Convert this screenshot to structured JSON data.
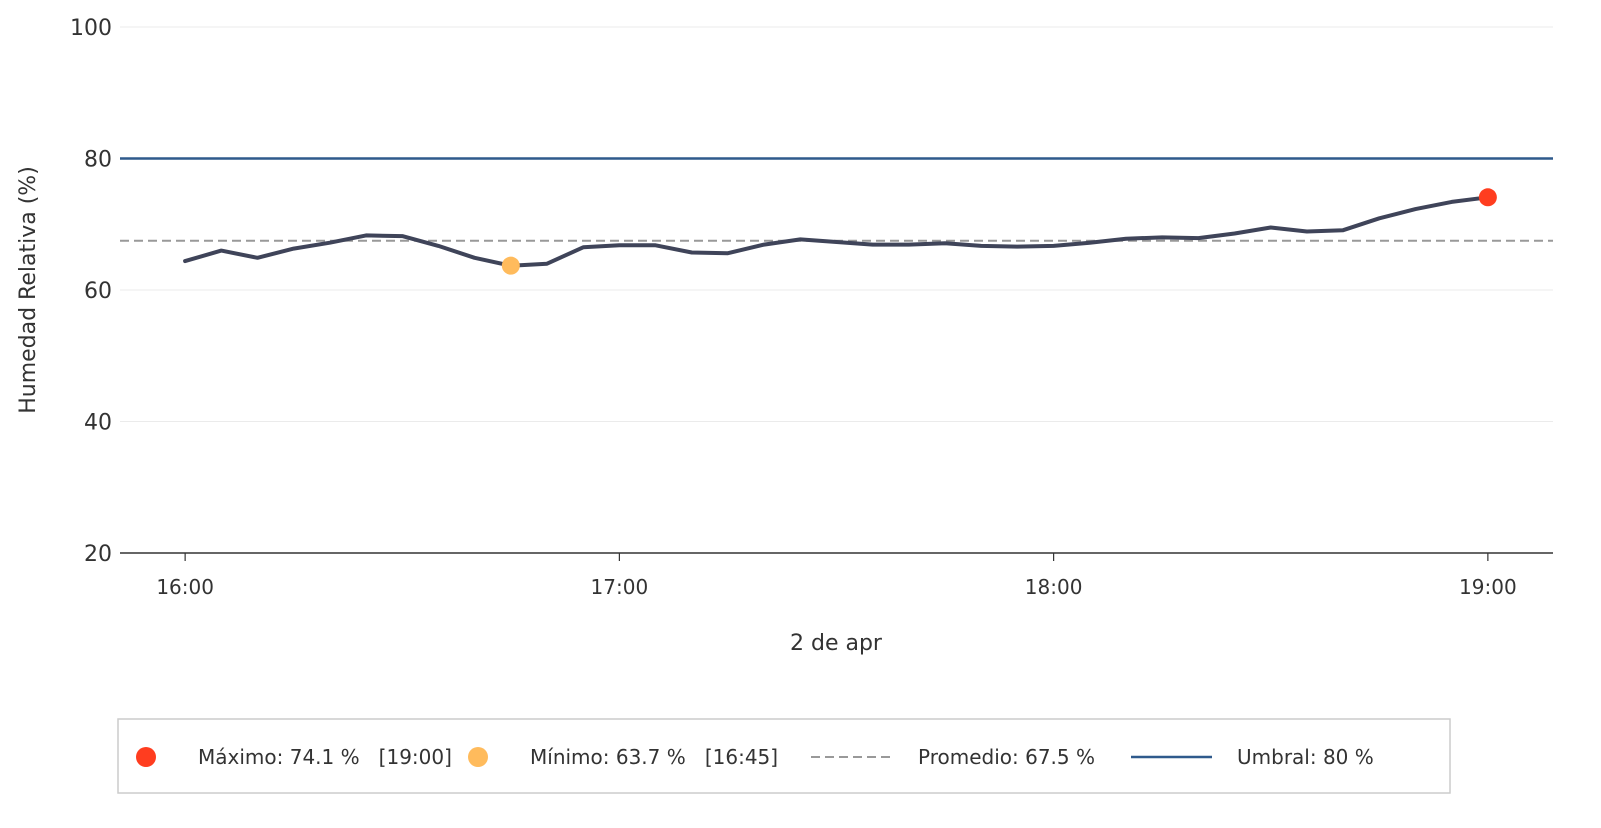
{
  "chart_data": {
    "type": "line",
    "ylabel": "Humedad Relativa (%)",
    "xlabel": "2 de apr",
    "ylim": [
      20,
      100
    ],
    "yticks": [
      20,
      40,
      60,
      80,
      100
    ],
    "xlim": [
      "15:51",
      "19:09"
    ],
    "xticks": [
      "16:00",
      "17:00",
      "18:00",
      "19:00"
    ],
    "grid": "horizontal",
    "series": [
      {
        "color": "#3f4459",
        "x": [
          "16:00",
          "16:05",
          "16:10",
          "16:15",
          "16:20",
          "16:25",
          "16:30",
          "16:35",
          "16:40",
          "16:45",
          "16:50",
          "16:55",
          "17:00",
          "17:05",
          "17:10",
          "17:15",
          "17:20",
          "17:25",
          "17:30",
          "17:35",
          "17:40",
          "17:45",
          "17:50",
          "17:55",
          "18:00",
          "18:05",
          "18:10",
          "18:15",
          "18:20",
          "18:25",
          "18:30",
          "18:35",
          "18:40",
          "18:45",
          "18:50",
          "18:55",
          "19:00"
        ],
        "values": [
          64.4,
          66.0,
          64.9,
          66.3,
          67.2,
          68.3,
          68.2,
          66.7,
          64.9,
          63.7,
          64.0,
          66.5,
          66.8,
          66.8,
          65.7,
          65.6,
          66.9,
          67.7,
          67.3,
          66.9,
          66.9,
          67.1,
          66.7,
          66.6,
          66.7,
          67.2,
          67.8,
          68.0,
          67.9,
          68.6,
          69.5,
          68.9,
          69.1,
          70.9,
          72.3,
          73.4,
          74.1
        ]
      }
    ],
    "max_point": {
      "time": "19:00",
      "value": 74.1,
      "color": "#ff3d1f"
    },
    "min_point": {
      "time": "16:45",
      "value": 63.7,
      "color": "#ffbb5c"
    },
    "average": {
      "value": 67.5,
      "color": "#999999"
    },
    "threshold": {
      "value": 80,
      "color": "#2f5a8c"
    },
    "legend": {
      "position": "bottom",
      "max_label": "Máximo: 74.1 %   [19:00]",
      "min_label": "Mínimo: 63.7 %   [16:45]",
      "avg_label": "Promedio: 67.5 %",
      "threshold_label": "Umbral: 80 %"
    }
  }
}
